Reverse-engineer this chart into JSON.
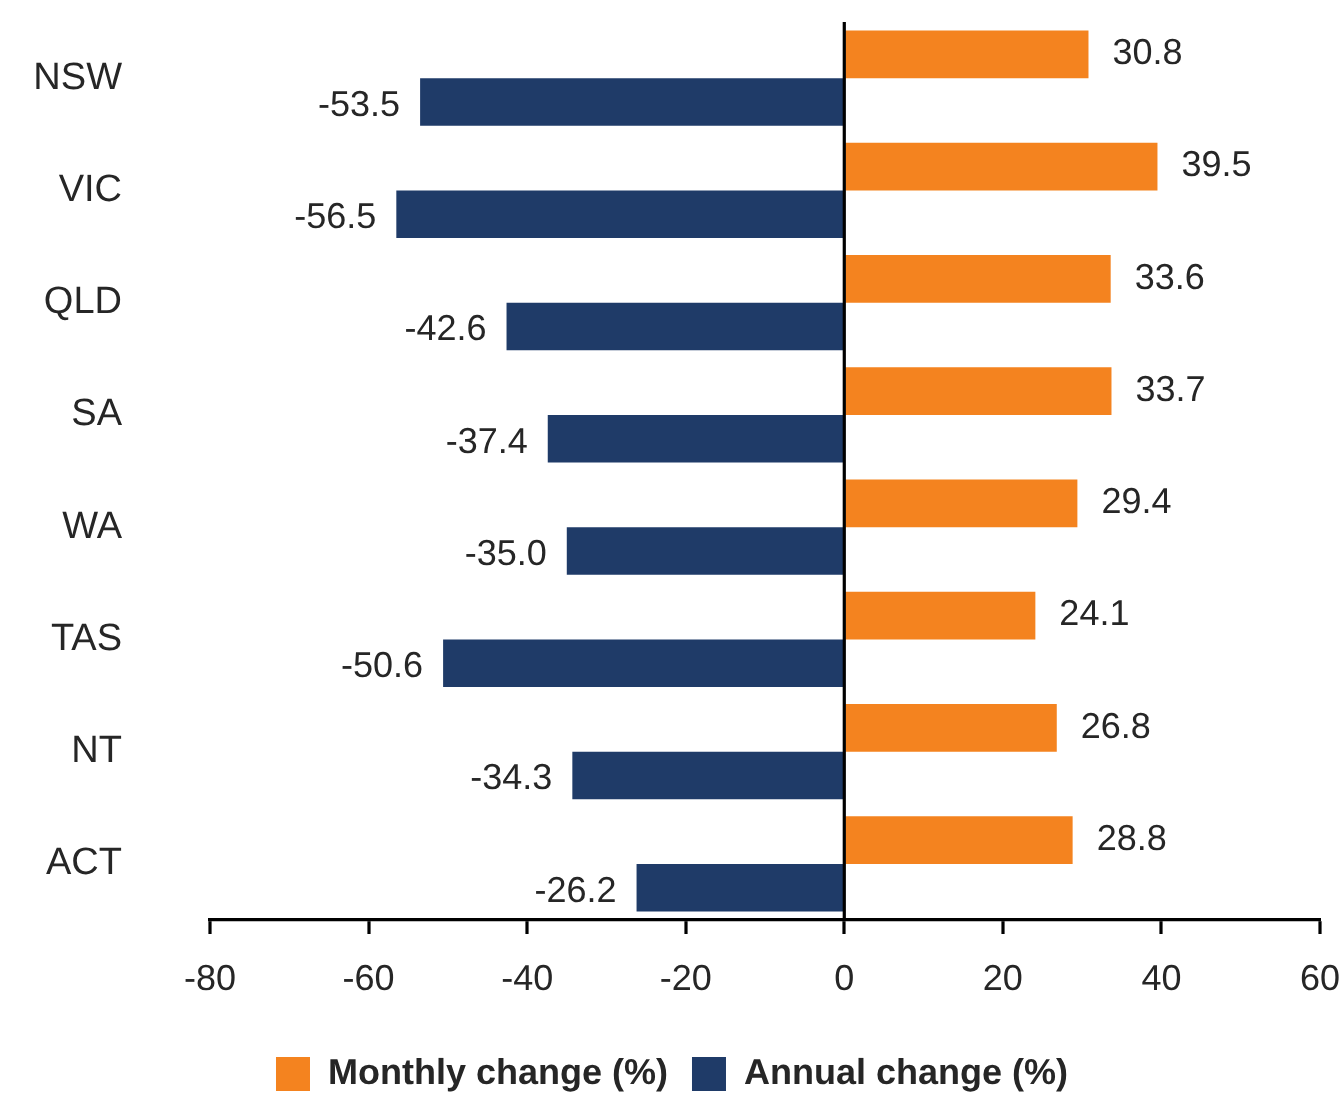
{
  "chart_data": {
    "type": "bar",
    "orientation": "horizontal",
    "categories": [
      "NSW",
      "VIC",
      "QLD",
      "SA",
      "WA",
      "TAS",
      "NT",
      "ACT"
    ],
    "series": [
      {
        "name": "Monthly change (%)",
        "color": "#f4831f",
        "values": [
          30.8,
          39.5,
          33.6,
          33.7,
          29.4,
          24.1,
          26.8,
          28.8
        ],
        "value_labels": [
          "30.8",
          "39.5",
          "33.6",
          "33.7",
          "29.4",
          "24.1",
          "26.8",
          "28.8"
        ]
      },
      {
        "name": "Annual change (%)",
        "color": "#1f3b68",
        "values": [
          -53.5,
          -56.5,
          -42.6,
          -37.4,
          -35.0,
          -50.6,
          -34.3,
          -26.2
        ],
        "value_labels": [
          "-53.5",
          "-56.5",
          "-42.6",
          "-37.4",
          "-35.0",
          "-50.6",
          "-34.3",
          "-26.2"
        ]
      }
    ],
    "xlim": [
      -80,
      60
    ],
    "xticks": [
      -80,
      -60,
      -40,
      -20,
      0,
      20,
      40,
      60
    ],
    "legend": "bottom"
  }
}
